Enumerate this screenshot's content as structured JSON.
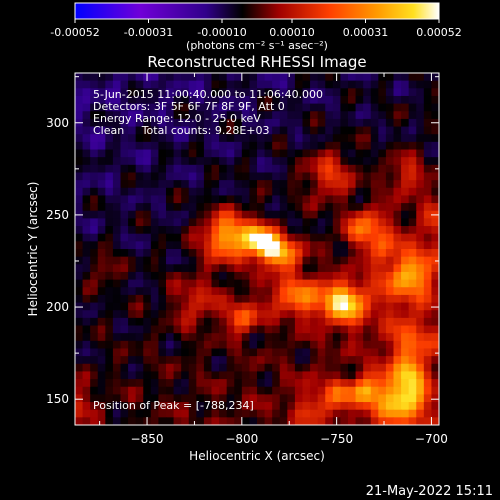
{
  "colorbar": {
    "tick_labels": [
      "-0.00052",
      "-0.00031",
      "-0.00010",
      "0.00010",
      "0.00031",
      "0.00052"
    ],
    "tick_values": [
      -0.00052,
      -0.00031,
      -0.0001,
      0.0001,
      0.00031,
      0.00052
    ],
    "range": [
      -0.00052,
      0.00052
    ],
    "colors": [
      "#0000ff",
      "#7000d8",
      "#000000",
      "#b00000",
      "#ff4000",
      "#ff9a00",
      "#ffe020",
      "#ffffff"
    ]
  },
  "chart_data": {
    "type": "heatmap",
    "title": "Reconstructed RHESSI Image",
    "xlabel": "Heliocentric X (arcsec)",
    "ylabel": "Heliocentric Y (arcsec)",
    "xlim": [
      -888,
      -696
    ],
    "ylim": [
      136,
      327
    ],
    "x_ticks": [
      -850,
      -800,
      -750,
      -700
    ],
    "y_ticks": [
      150,
      200,
      250,
      300
    ],
    "colorbar_label": "(photons cm⁻² s⁻¹ asec⁻²)",
    "peak": [
      -788,
      234
    ],
    "annotations": [
      "5-Jun-2015 11:00:40.000 to 11:06:40.000",
      "Detectors: 3F 5F 6F 7F 8F 9F, Att 0",
      "Energy Range: 12.0 - 25.0 keV",
      "Clean     Total counts: 9.28E+03",
      "Position of Peak = [-788,234]"
    ]
  },
  "footer": {
    "timestamp": "21-May-2022 15:11"
  }
}
